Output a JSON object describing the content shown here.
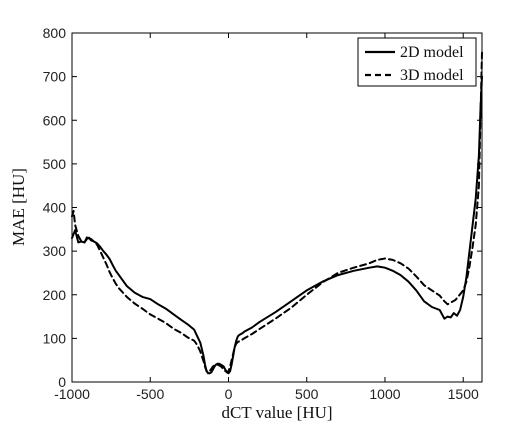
{
  "chart_data": {
    "type": "line",
    "xlabel": "dCT value [HU]",
    "ylabel": "MAE [HU]",
    "xlim": [
      -1000,
      1620
    ],
    "ylim": [
      0,
      800
    ],
    "xticks": [
      -1000,
      -500,
      0,
      500,
      1000,
      1500
    ],
    "yticks": [
      0,
      100,
      200,
      300,
      400,
      500,
      600,
      700,
      800
    ],
    "xtick_labels": [
      "-1000",
      "-500",
      "0",
      "500",
      "1000",
      "1500"
    ],
    "ytick_labels": [
      "0",
      "100",
      "200",
      "300",
      "400",
      "500",
      "600",
      "700",
      "800"
    ],
    "grid": false,
    "legend_position": "top-right",
    "series": [
      {
        "name": "2D model",
        "line_style": "solid",
        "color": "#000000",
        "x": [
          -1000,
          -980,
          -960,
          -940,
          -920,
          -900,
          -880,
          -860,
          -840,
          -820,
          -800,
          -780,
          -760,
          -740,
          -720,
          -700,
          -650,
          -600,
          -550,
          -500,
          -450,
          -400,
          -350,
          -300,
          -260,
          -220,
          -200,
          -180,
          -160,
          -150,
          -140,
          -130,
          -120,
          -110,
          -100,
          -90,
          -80,
          -70,
          -60,
          -50,
          -40,
          -30,
          -20,
          -10,
          0,
          10,
          20,
          30,
          40,
          50,
          60,
          70,
          80,
          90,
          100,
          150,
          200,
          300,
          400,
          500,
          600,
          700,
          800,
          900,
          950,
          1000,
          1050,
          1100,
          1150,
          1200,
          1250,
          1300,
          1350,
          1380,
          1400,
          1420,
          1440,
          1460,
          1480,
          1500,
          1520,
          1540,
          1560,
          1580,
          1600,
          1610,
          1620
        ],
        "y": [
          330,
          348,
          320,
          322,
          320,
          330,
          328,
          322,
          318,
          310,
          300,
          292,
          282,
          268,
          255,
          245,
          220,
          205,
          195,
          190,
          178,
          168,
          155,
          142,
          132,
          120,
          105,
          90,
          60,
          40,
          25,
          20,
          20,
          22,
          28,
          35,
          40,
          42,
          42,
          40,
          38,
          35,
          28,
          22,
          20,
          25,
          40,
          60,
          80,
          95,
          105,
          108,
          110,
          112,
          115,
          125,
          138,
          160,
          185,
          210,
          230,
          245,
          255,
          262,
          265,
          262,
          255,
          245,
          230,
          210,
          185,
          172,
          165,
          145,
          150,
          148,
          158,
          152,
          165,
          195,
          240,
          300,
          360,
          420,
          520,
          620,
          700
        ]
      },
      {
        "name": "3D model",
        "line_style": "dashed",
        "color": "#000000",
        "x": [
          -1000,
          -990,
          -980,
          -960,
          -940,
          -920,
          -900,
          -880,
          -860,
          -840,
          -820,
          -800,
          -780,
          -760,
          -740,
          -720,
          -700,
          -650,
          -600,
          -550,
          -500,
          -450,
          -400,
          -350,
          -300,
          -260,
          -220,
          -200,
          -180,
          -160,
          -150,
          -140,
          -130,
          -120,
          -110,
          -100,
          -90,
          -80,
          -70,
          -60,
          -50,
          -40,
          -30,
          -20,
          -10,
          0,
          10,
          20,
          30,
          40,
          50,
          60,
          80,
          100,
          150,
          200,
          300,
          400,
          500,
          600,
          700,
          800,
          900,
          950,
          1000,
          1050,
          1100,
          1150,
          1200,
          1250,
          1300,
          1350,
          1380,
          1400,
          1450,
          1500,
          1520,
          1540,
          1560,
          1580,
          1600,
          1610,
          1620
        ],
        "y": [
          380,
          392,
          360,
          335,
          322,
          320,
          335,
          325,
          322,
          315,
          300,
          285,
          270,
          252,
          238,
          225,
          215,
          195,
          180,
          168,
          155,
          145,
          135,
          122,
          112,
          102,
          95,
          85,
          70,
          48,
          35,
          25,
          22,
          25,
          30,
          35,
          38,
          40,
          40,
          38,
          36,
          33,
          28,
          25,
          23,
          25,
          35,
          50,
          65,
          80,
          88,
          92,
          95,
          100,
          110,
          122,
          145,
          170,
          200,
          228,
          250,
          262,
          272,
          280,
          283,
          280,
          272,
          260,
          242,
          222,
          210,
          198,
          185,
          178,
          188,
          210,
          230,
          265,
          310,
          360,
          450,
          600,
          755
        ]
      }
    ]
  }
}
